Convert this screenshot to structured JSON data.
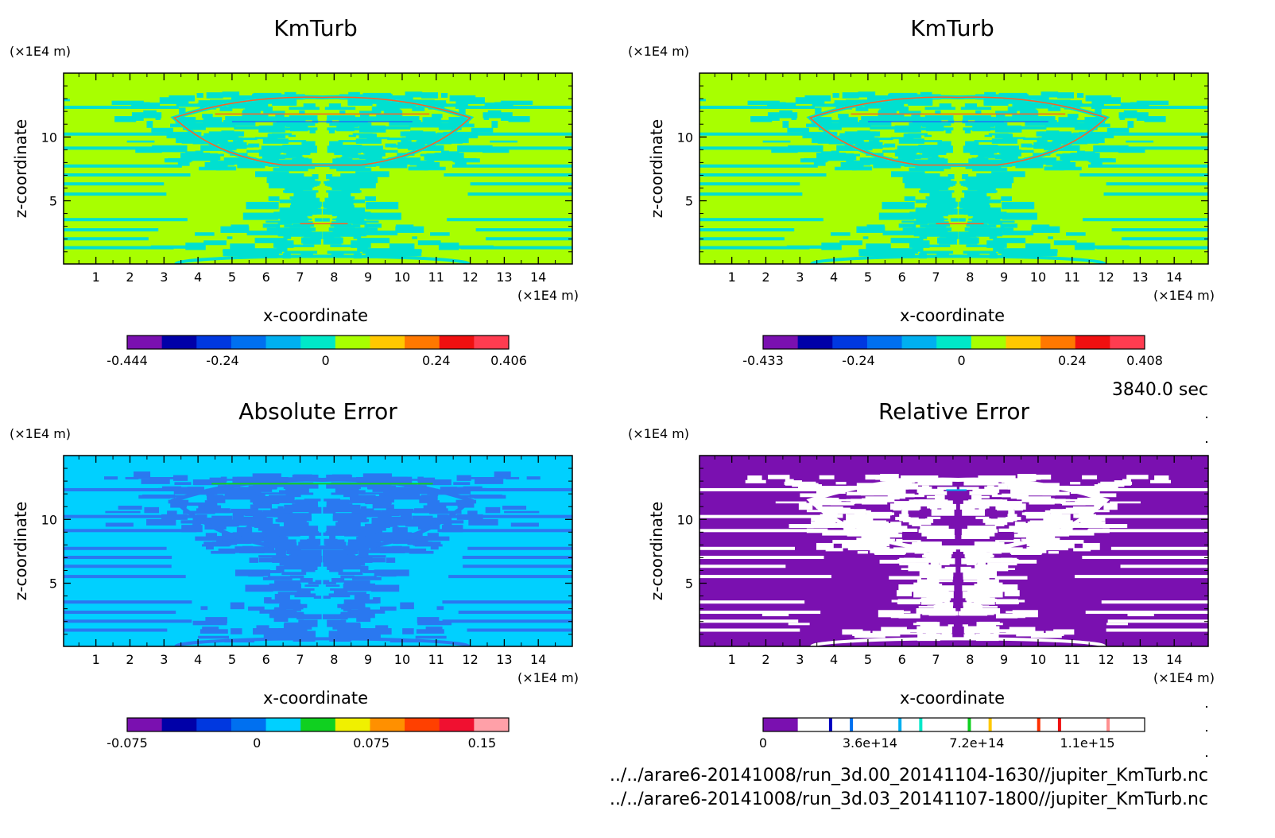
{
  "timestamp": "3840.0 sec",
  "files": [
    "../../arare6-20141008/run_3d.00_20141104-1630//jupiter_KmTurb.nc",
    "../../arare6-20141008/run_3d.03_20141107-1800//jupiter_KmTurb.nc"
  ],
  "chart_data": [
    {
      "type": "heatmap",
      "title": "KmTurb",
      "xlabel": "x-coordinate",
      "ylabel": "z-coordinate",
      "x_unit": "(×1E4 m)",
      "y_unit": "(×1E4 m)",
      "xlim": [
        0.05,
        15.0
      ],
      "ylim": [
        0.05,
        15.0
      ],
      "xticks": [
        "1",
        "2",
        "3",
        "4",
        "5",
        "6",
        "7",
        "8",
        "9",
        "10",
        "11",
        "12",
        "13",
        "14"
      ],
      "yticks": [
        "5",
        "10"
      ],
      "colorbar": {
        "colors": [
          "#7a10b0",
          "#0000a8",
          "#0038e0",
          "#0070f0",
          "#00b0f0",
          "#00e8c8",
          "#a8ff00",
          "#ffc800",
          "#ff7800",
          "#f01010",
          "#ff3c50"
        ],
        "tick_labels": [
          "-0.444",
          "-0.24",
          "0",
          "0.24",
          "0.406"
        ]
      },
      "background_color": "#a8ff00",
      "pattern_color": "#00e0d0",
      "accent_colors": [
        "#ff6020",
        "#2060ff"
      ]
    },
    {
      "type": "heatmap",
      "title": "KmTurb",
      "xlabel": "x-coordinate",
      "ylabel": "z-coordinate",
      "x_unit": "(×1E4 m)",
      "y_unit": "(×1E4 m)",
      "xlim": [
        0.05,
        15.0
      ],
      "ylim": [
        0.05,
        15.0
      ],
      "xticks": [
        "1",
        "2",
        "3",
        "4",
        "5",
        "6",
        "7",
        "8",
        "9",
        "10",
        "11",
        "12",
        "13",
        "14"
      ],
      "yticks": [
        "5",
        "10"
      ],
      "colorbar": {
        "colors": [
          "#7a10b0",
          "#0000a8",
          "#0038e0",
          "#0070f0",
          "#00b0f0",
          "#00e8c8",
          "#a8ff00",
          "#ffc800",
          "#ff7800",
          "#f01010",
          "#ff3c50"
        ],
        "tick_labels": [
          "-0.433",
          "-0.24",
          "0",
          "0.24",
          "0.408"
        ]
      },
      "background_color": "#a8ff00",
      "pattern_color": "#00e0d0",
      "accent_colors": [
        "#ff6020",
        "#2060ff"
      ]
    },
    {
      "type": "heatmap",
      "title": "Absolute Error",
      "xlabel": "x-coordinate",
      "ylabel": "z-coordinate",
      "x_unit": "(×1E4 m)",
      "y_unit": "(×1E4 m)",
      "xlim": [
        0.05,
        15.0
      ],
      "ylim": [
        0.05,
        15.0
      ],
      "xticks": [
        "1",
        "2",
        "3",
        "4",
        "5",
        "6",
        "7",
        "8",
        "9",
        "10",
        "11",
        "12",
        "13",
        "14"
      ],
      "yticks": [
        "5",
        "10"
      ],
      "colorbar": {
        "colors": [
          "#7a10b0",
          "#0000a8",
          "#0038e0",
          "#0070f0",
          "#00d0ff",
          "#10d020",
          "#f0f000",
          "#ff9000",
          "#ff4000",
          "#f01030",
          "#ffa0a8"
        ],
        "tick_labels": [
          "-0.075",
          "0",
          "0.075",
          "0.15"
        ]
      },
      "background_color": "#00d0ff",
      "pattern_color": "#2a78f0",
      "accent_colors": [
        "#10d020",
        "#ff9000"
      ]
    },
    {
      "type": "heatmap",
      "title": "Relative Error",
      "xlabel": "x-coordinate",
      "ylabel": "z-coordinate",
      "x_unit": "(×1E4 m)",
      "y_unit": "(×1E4 m)",
      "xlim": [
        0.05,
        15.0
      ],
      "ylim": [
        0.05,
        15.0
      ],
      "xticks": [
        "1",
        "2",
        "3",
        "4",
        "5",
        "6",
        "7",
        "8",
        "9",
        "10",
        "11",
        "12",
        "13",
        "14"
      ],
      "yticks": [
        "5",
        "10"
      ],
      "colorbar": {
        "colors": [
          "#7a10b0",
          "#ffffff",
          "#ffffff",
          "#ffffff",
          "#ffffff",
          "#ffffff",
          "#ffffff",
          "#ffffff",
          "#ffffff",
          "#ffffff",
          "#ffffff"
        ],
        "stripe_colors": [
          "#0000c0",
          "#0070f0",
          "#00b0f0",
          "#00e8c8",
          "#10d020",
          "#ffc800",
          "#ff3000",
          "#f01010",
          "#ff9090"
        ],
        "tick_labels": [
          "0",
          "3.6e+14",
          "7.2e+14",
          "1.1e+15"
        ]
      },
      "background_color": "#7a10b0",
      "pattern_color": "#ffffff",
      "accent_colors": [
        "#00b0f0"
      ]
    }
  ]
}
